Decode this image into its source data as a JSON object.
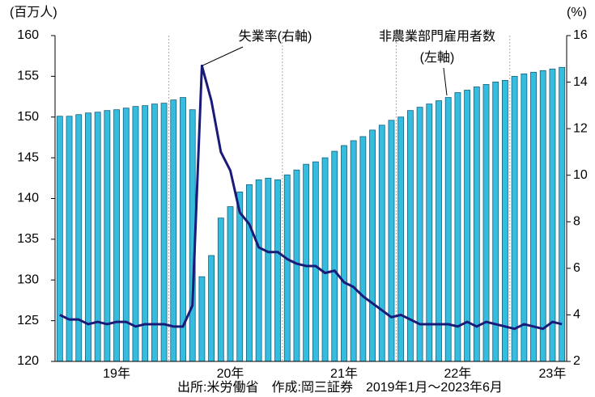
{
  "chart_data": {
    "type": "bar_line",
    "y_label": "(百万人)",
    "y2_label": "(%)",
    "annotations": [
      "失業率(右軸)",
      "非農業部門雇用者数",
      "(左軸)"
    ],
    "footer": "出所:米労働省　作成:岡三証券　2019年1月～2023年6月",
    "categories": [
      null,
      null,
      null,
      null,
      null,
      null,
      "19年",
      null,
      null,
      null,
      null,
      null,
      null,
      null,
      null,
      null,
      null,
      null,
      "20年",
      null,
      null,
      null,
      null,
      null,
      null,
      null,
      null,
      null,
      null,
      null,
      "21年",
      null,
      null,
      null,
      null,
      null,
      null,
      null,
      null,
      null,
      null,
      null,
      "22年",
      null,
      null,
      null,
      null,
      null,
      null,
      null,
      null,
      null,
      "23年",
      null
    ],
    "series": [
      {
        "name": "非農業部門雇用者数",
        "type": "bar",
        "color": "#35bde0",
        "edge": "#1a5f7a",
        "values": [
          150.1,
          150.1,
          150.3,
          150.5,
          150.6,
          150.8,
          150.9,
          151.1,
          151.3,
          151.4,
          151.6,
          151.7,
          152.1,
          152.4,
          150.9,
          130.4,
          133.0,
          137.6,
          139.0,
          140.8,
          141.7,
          142.3,
          142.5,
          142.3,
          142.9,
          143.5,
          144.2,
          144.5,
          145.0,
          145.8,
          146.5,
          147.1,
          147.6,
          148.4,
          149.0,
          149.6,
          150.0,
          150.8,
          151.2,
          151.6,
          152.0,
          152.4,
          153.0,
          153.3,
          153.7,
          154.0,
          154.3,
          154.5,
          155.0,
          155.3,
          155.5,
          155.7,
          155.9,
          156.1
        ]
      },
      {
        "name": "失業率",
        "type": "line",
        "axis": "y2",
        "color": "#1a1a78",
        "values": [
          4.0,
          3.8,
          3.8,
          3.6,
          3.7,
          3.6,
          3.7,
          3.7,
          3.5,
          3.6,
          3.6,
          3.6,
          3.5,
          3.5,
          4.4,
          14.7,
          13.2,
          11.0,
          10.2,
          8.4,
          7.9,
          6.9,
          6.7,
          6.7,
          6.4,
          6.2,
          6.1,
          6.1,
          5.8,
          5.9,
          5.4,
          5.2,
          4.8,
          4.5,
          4.2,
          3.9,
          4.0,
          3.8,
          3.6,
          3.6,
          3.6,
          3.6,
          3.5,
          3.7,
          3.5,
          3.7,
          3.6,
          3.5,
          3.4,
          3.6,
          3.5,
          3.4,
          3.7,
          3.6
        ]
      }
    ],
    "ylim": [
      120,
      160
    ],
    "yticks": [
      120,
      125,
      130,
      135,
      140,
      145,
      150,
      155,
      160
    ],
    "y2lim": [
      2,
      16
    ],
    "y2ticks": [
      2,
      4,
      6,
      8,
      10,
      12,
      14,
      16
    ]
  }
}
